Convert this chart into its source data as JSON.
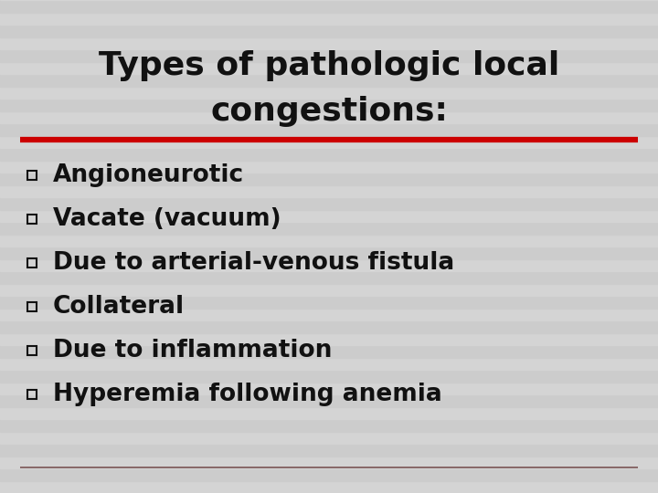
{
  "title_line1": "Types of pathologic local",
  "title_line2": "congestions",
  "title_colon": ":",
  "background_color": "#d8d8d8",
  "title_color": "#111111",
  "bullet_color": "#111111",
  "separator_color_red": "#cc0000",
  "separator_color_gray": "#aaaaaa",
  "items": [
    "Angioneurotic",
    "Vacate (vacuum)",
    "Due to arterial-venous fistula",
    "Collateral",
    "Due to inflammation",
    "Hyperemia following anemia"
  ],
  "title_fontsize": 26,
  "item_fontsize": 19,
  "stripe_light": "#d4d4d4",
  "stripe_dark": "#cccccc",
  "num_stripes": 40
}
